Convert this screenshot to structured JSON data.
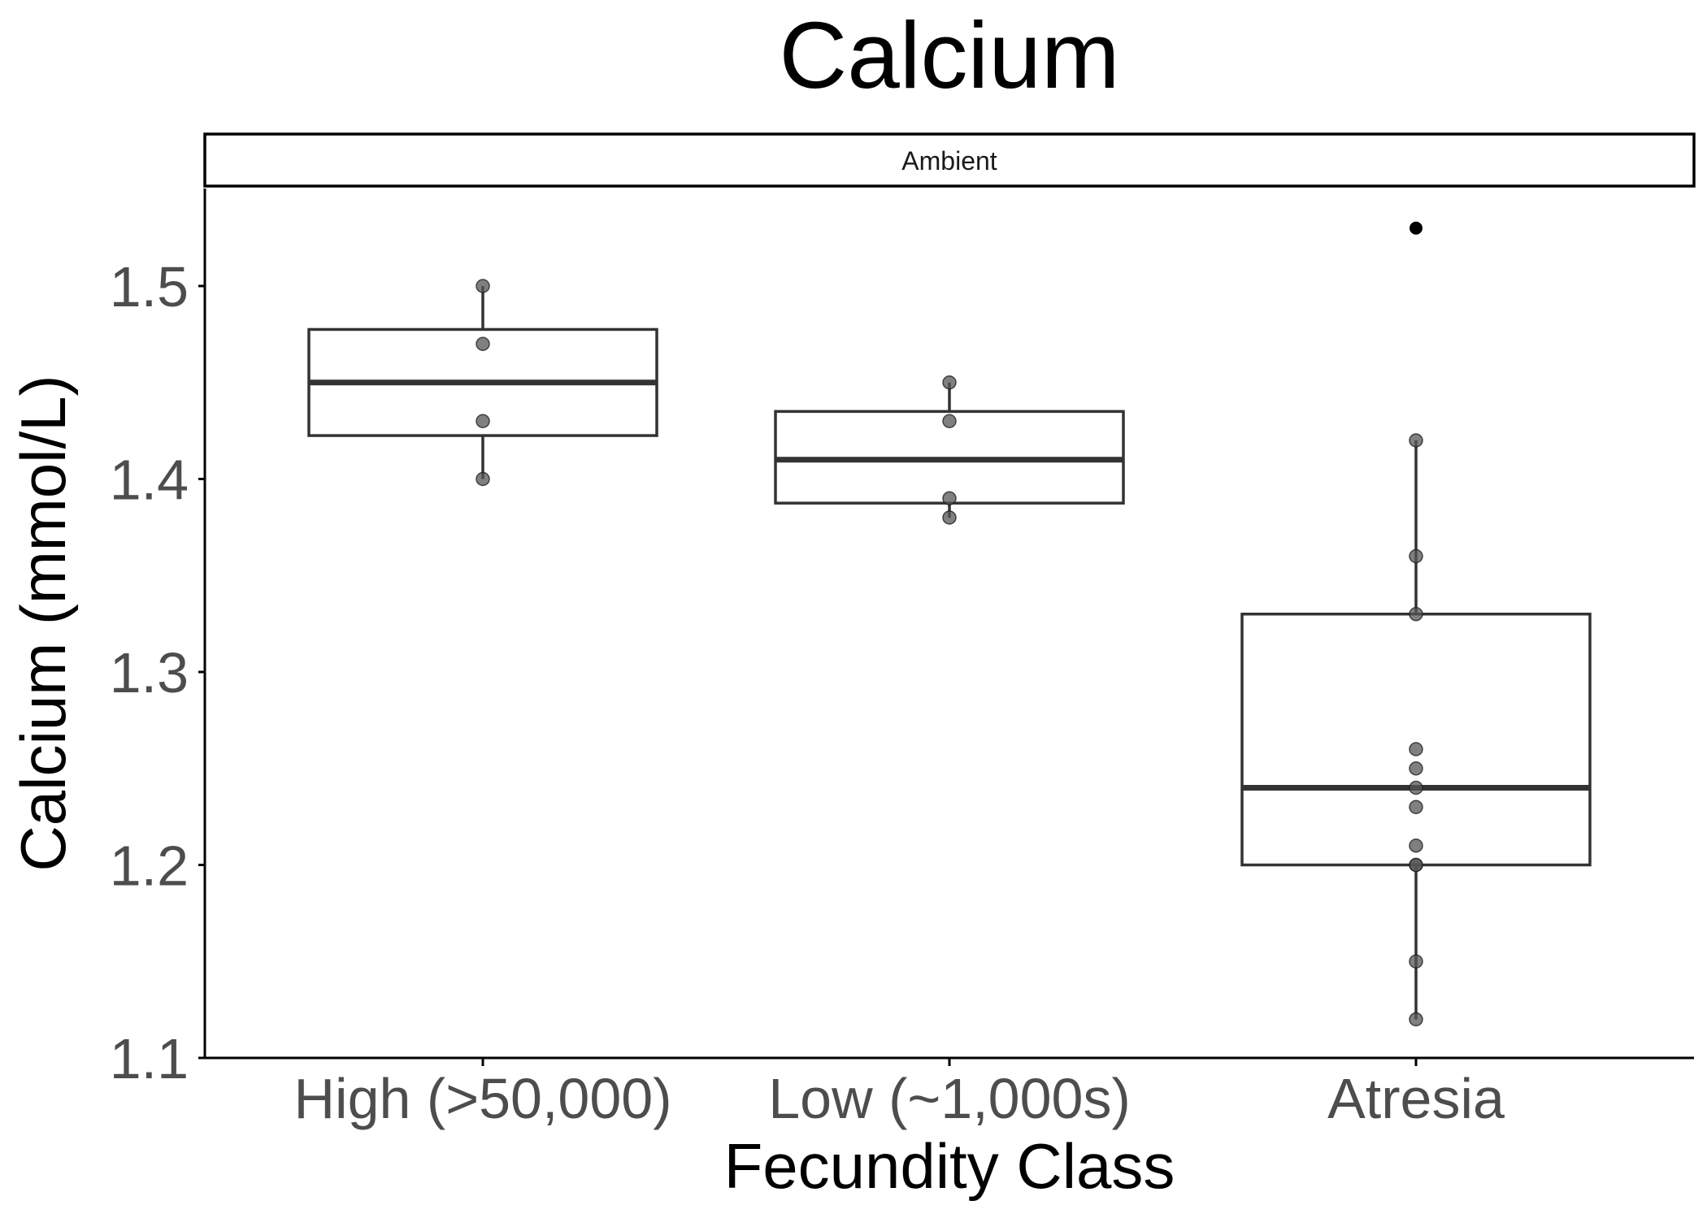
{
  "chart_data": {
    "type": "box",
    "title": "Calcium",
    "facet": "Ambient",
    "xlabel": "Fecundity Class",
    "ylabel": "Calcium (mmol/L)",
    "ylim": [
      1.1,
      1.55
    ],
    "yticks": [
      1.1,
      1.2,
      1.3,
      1.4,
      1.5
    ],
    "ytick_labels": [
      "1.1",
      "1.2",
      "1.3",
      "1.4",
      "1.5"
    ],
    "grid": false,
    "legend": "none",
    "colors": {
      "box": "#333333",
      "point": "#555555",
      "outlier": "#000000"
    },
    "categories": [
      "High (>50,000)",
      "Low (~1,000s)",
      "Atresia"
    ],
    "groups": [
      {
        "category": "High (>50,000)",
        "q1": 1.4225,
        "median": 1.45,
        "q3": 1.4775,
        "whisker_low": 1.4,
        "whisker_high": 1.5,
        "outliers": [],
        "points": [
          1.5,
          1.47,
          1.43,
          1.4
        ]
      },
      {
        "category": "Low (~1,000s)",
        "q1": 1.3875,
        "median": 1.41,
        "q3": 1.435,
        "whisker_low": 1.38,
        "whisker_high": 1.45,
        "outliers": [],
        "points": [
          1.45,
          1.43,
          1.39,
          1.38
        ]
      },
      {
        "category": "Atresia",
        "q1": 1.2,
        "median": 1.24,
        "q3": 1.33,
        "whisker_low": 1.12,
        "whisker_high": 1.42,
        "outliers": [
          1.53
        ],
        "points": [
          1.42,
          1.36,
          1.33,
          1.26,
          1.25,
          1.24,
          1.23,
          1.21,
          1.2,
          1.2,
          1.15,
          1.12
        ]
      }
    ]
  }
}
